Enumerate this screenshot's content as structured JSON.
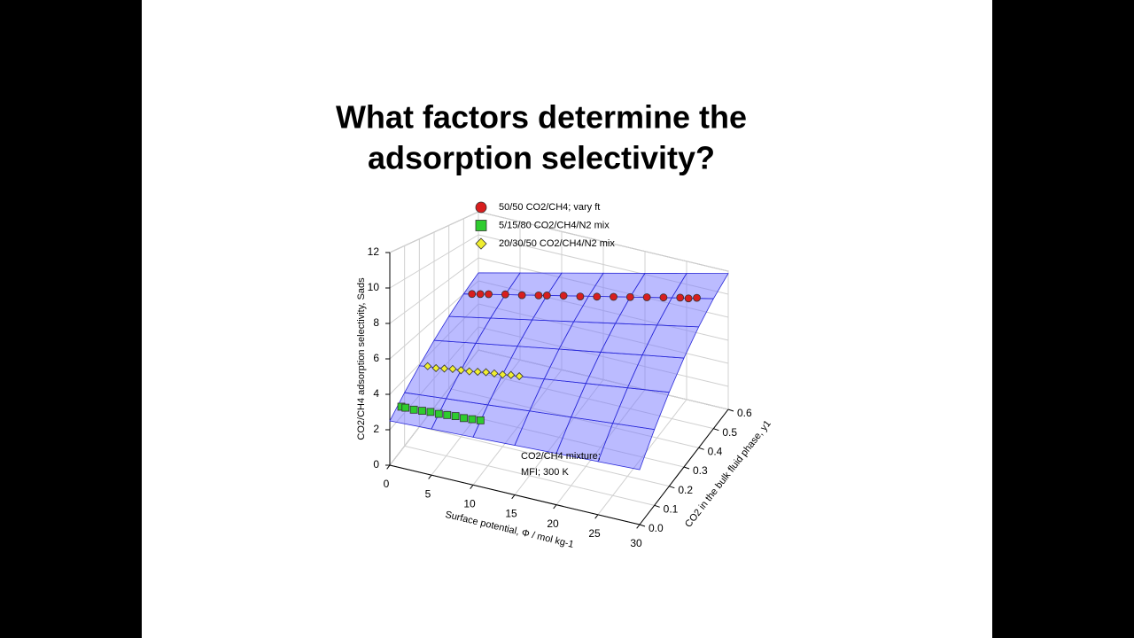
{
  "title": [
    "What factors determine the",
    "adsorption selectivity?"
  ],
  "chart_data": {
    "type": "surface3d",
    "xlabel": "Surface potential, Φ /  mol kg-1",
    "ylabel": "CO2 in the bulk fluid phase, y1",
    "zlabel": "CO2/CH4 adsorption selectivity, Sads",
    "xlim": [
      0,
      30
    ],
    "ylim": [
      0,
      0.6
    ],
    "zlim": [
      0,
      12
    ],
    "xticks": [
      0,
      5,
      10,
      15,
      20,
      25,
      30
    ],
    "yticks": [
      {
        "value": 0,
        "label": "0.0"
      },
      0.1,
      0.2,
      0.3,
      0.4,
      0.5,
      0.6
    ],
    "zticks": [
      0,
      2,
      4,
      6,
      8,
      10,
      12
    ],
    "grid": true,
    "legend": "top",
    "annotation": [
      "CO2/CH4 mixture;",
      "MFI; 300 K"
    ],
    "surface": {
      "color": "#2a2ad8",
      "x": [
        0,
        5,
        10,
        15,
        20,
        25,
        30
      ],
      "y": [
        0,
        0.1,
        0.2,
        0.3,
        0.4,
        0.5,
        0.6
      ],
      "z": [
        [
          2.5,
          2.6,
          2.7,
          2.8,
          2.9,
          3.0,
          3.1
        ],
        [
          3.2,
          3.43,
          3.65,
          3.88,
          4.1,
          4.33,
          4.55
        ],
        [
          3.9,
          4.25,
          4.6,
          4.95,
          5.3,
          5.65,
          6.0
        ],
        [
          4.6,
          5.08,
          5.55,
          6.03,
          6.5,
          6.98,
          7.45
        ],
        [
          5.3,
          5.9,
          6.5,
          7.1,
          7.7,
          8.3,
          8.9
        ],
        [
          6.0,
          6.73,
          7.45,
          8.18,
          8.9,
          9.63,
          10.35
        ],
        [
          6.7,
          7.55,
          8.4,
          9.25,
          10.1,
          10.95,
          11.8
        ]
      ]
    },
    "series": [
      {
        "name": "50/50 CO2/CH4; vary ft",
        "color": "#d81e1e",
        "marker": "circle",
        "x": [
          1,
          2,
          3,
          5,
          7,
          9,
          10,
          12,
          14,
          16,
          18,
          20,
          22,
          24,
          26,
          27,
          28
        ],
        "y": [
          0.5,
          0.5,
          0.5,
          0.5,
          0.5,
          0.5,
          0.5,
          0.5,
          0.5,
          0.5,
          0.5,
          0.5,
          0.5,
          0.5,
          0.5,
          0.5,
          0.5
        ],
        "z": [
          6.15,
          6.3,
          6.45,
          6.75,
          7.0,
          7.3,
          7.45,
          7.75,
          8.0,
          8.3,
          8.6,
          8.9,
          9.2,
          9.5,
          9.8,
          9.9,
          10.1
        ]
      },
      {
        "name": "5/15/80 CO2/CH4/N2 mix",
        "color": "#2ecc2e",
        "marker": "square",
        "x": [
          0.5,
          1,
          2,
          3,
          4,
          5,
          6,
          7,
          8,
          9,
          10
        ],
        "y": [
          0.05,
          0.05,
          0.05,
          0.05,
          0.05,
          0.05,
          0.05,
          0.05,
          0.05,
          0.05,
          0.05
        ],
        "z": [
          2.9,
          2.9,
          2.9,
          2.95,
          3.0,
          3.0,
          3.05,
          3.1,
          3.1,
          3.15,
          3.2
        ]
      },
      {
        "name": "20/30/50 CO2/CH4/N2 mix",
        "color": "#f0ee30",
        "marker": "diamond",
        "x": [
          1,
          2,
          3,
          4,
          5,
          6,
          7,
          8,
          9,
          10,
          11,
          12
        ],
        "y": [
          0.2,
          0.2,
          0.2,
          0.2,
          0.2,
          0.2,
          0.2,
          0.2,
          0.2,
          0.2,
          0.2,
          0.2
        ],
        "z": [
          4.0,
          4.0,
          4.1,
          4.2,
          4.25,
          4.3,
          4.4,
          4.5,
          4.55,
          4.6,
          4.7,
          4.75
        ]
      }
    ]
  }
}
